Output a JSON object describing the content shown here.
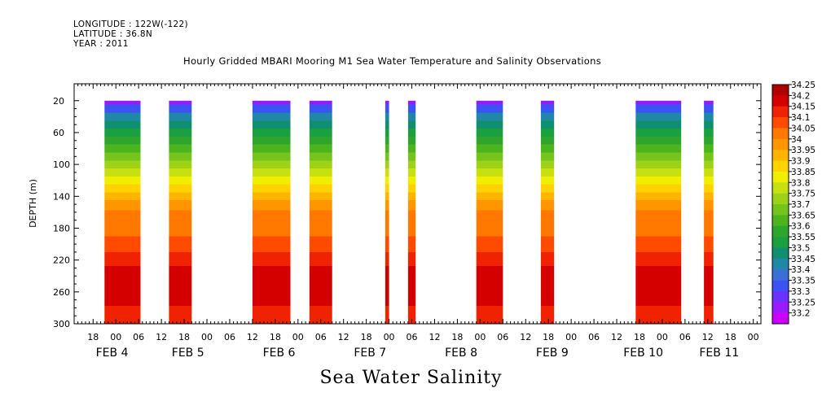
{
  "meta": {
    "longitude": "LONGITUDE : 122W(-122)",
    "latitude": "LATITUDE : 36.8N",
    "year": "YEAR : 2011"
  },
  "chart_data": {
    "type": "heatmap",
    "title": "Hourly Gridded MBARI Mooring M1 Sea Water Temperature and Salinity Observations",
    "footer": "Sea Water Salinity",
    "ylabel": "DEPTH (m)",
    "xlabel": "",
    "y_axis": {
      "range": [
        20,
        300
      ],
      "reversed": true,
      "ticks": [
        20,
        60,
        100,
        140,
        180,
        220,
        260,
        300
      ]
    },
    "x_axis": {
      "unit": "hours since FEB 3 00:00",
      "range": [
        13,
        194
      ],
      "tick_labels": [
        {
          "h": 18,
          "label": "18"
        },
        {
          "h": 24,
          "label": "00"
        },
        {
          "h": 30,
          "label": "06"
        },
        {
          "h": 36,
          "label": "12"
        },
        {
          "h": 42,
          "label": "18"
        },
        {
          "h": 48,
          "label": "00"
        },
        {
          "h": 54,
          "label": "06"
        },
        {
          "h": 60,
          "label": "12"
        },
        {
          "h": 66,
          "label": "18"
        },
        {
          "h": 72,
          "label": "00"
        },
        {
          "h": 78,
          "label": "06"
        },
        {
          "h": 84,
          "label": "12"
        },
        {
          "h": 90,
          "label": "18"
        },
        {
          "h": 96,
          "label": "00"
        },
        {
          "h": 102,
          "label": "06"
        },
        {
          "h": 108,
          "label": "12"
        },
        {
          "h": 114,
          "label": "18"
        },
        {
          "h": 120,
          "label": "00"
        },
        {
          "h": 126,
          "label": "06"
        },
        {
          "h": 132,
          "label": "12"
        },
        {
          "h": 138,
          "label": "18"
        },
        {
          "h": 144,
          "label": "00"
        },
        {
          "h": 150,
          "label": "06"
        },
        {
          "h": 156,
          "label": "12"
        },
        {
          "h": 162,
          "label": "18"
        },
        {
          "h": 168,
          "label": "00"
        },
        {
          "h": 174,
          "label": "06"
        },
        {
          "h": 180,
          "label": "12"
        },
        {
          "h": 186,
          "label": "18"
        },
        {
          "h": 192,
          "label": "00"
        }
      ],
      "day_labels": [
        {
          "h": 23,
          "label": "FEB  4"
        },
        {
          "h": 43,
          "label": "FEB  5"
        },
        {
          "h": 67,
          "label": "FEB  6"
        },
        {
          "h": 91,
          "label": "FEB  7"
        },
        {
          "h": 115,
          "label": "FEB  8"
        },
        {
          "h": 139,
          "label": "FEB  9"
        },
        {
          "h": 163,
          "label": "FEB 10"
        },
        {
          "h": 183,
          "label": "FEB 11"
        }
      ]
    },
    "legend": {
      "placement": "right",
      "levels": [
        "33.2",
        "33.25",
        "33.3",
        "33.35",
        "33.4",
        "33.45",
        "33.5",
        "33.55",
        "33.6",
        "33.65",
        "33.7",
        "33.75",
        "33.8",
        "33.85",
        "33.9",
        "33.95",
        "34",
        "34.05",
        "34.1",
        "34.15",
        "34.2",
        "34.25"
      ],
      "colors": [
        "#cc00ff",
        "#9a1aff",
        "#6b32ff",
        "#3d52f5",
        "#3a6fd6",
        "#1f88a8",
        "#0f8f6e",
        "#1aa041",
        "#2ea62e",
        "#4cb51e",
        "#74c41b",
        "#9ed219",
        "#c8e00f",
        "#f0ef00",
        "#ffd200",
        "#ffb400",
        "#ff9600",
        "#ff7800",
        "#ff4a00",
        "#f02200",
        "#d40000",
        "#b00000"
      ]
    },
    "observation_segments": [
      {
        "start_h": 21,
        "end_h": 30.5
      },
      {
        "start_h": 38,
        "end_h": 44
      },
      {
        "start_h": 60,
        "end_h": 70
      },
      {
        "start_h": 75,
        "end_h": 81
      },
      {
        "start_h": 95,
        "end_h": 96
      },
      {
        "start_h": 101,
        "end_h": 103
      },
      {
        "start_h": 119,
        "end_h": 126
      },
      {
        "start_h": 136,
        "end_h": 139.5
      },
      {
        "start_h": 161,
        "end_h": 173
      },
      {
        "start_h": 179,
        "end_h": 181.5
      }
    ],
    "salinity_profile": [
      {
        "depth": 20,
        "value": 33.25
      },
      {
        "depth": 30,
        "value": 33.35
      },
      {
        "depth": 40,
        "value": 33.45
      },
      {
        "depth": 50,
        "value": 33.5
      },
      {
        "depth": 60,
        "value": 33.55
      },
      {
        "depth": 70,
        "value": 33.6
      },
      {
        "depth": 80,
        "value": 33.65
      },
      {
        "depth": 90,
        "value": 33.7
      },
      {
        "depth": 100,
        "value": 33.75
      },
      {
        "depth": 110,
        "value": 33.8
      },
      {
        "depth": 120,
        "value": 33.85
      },
      {
        "depth": 130,
        "value": 33.9
      },
      {
        "depth": 140,
        "value": 33.95
      },
      {
        "depth": 150,
        "value": 34
      },
      {
        "depth": 165,
        "value": 34.05
      },
      {
        "depth": 180,
        "value": 34.05
      },
      {
        "depth": 200,
        "value": 34.1
      },
      {
        "depth": 220,
        "value": 34.15
      },
      {
        "depth": 235,
        "value": 34.2
      },
      {
        "depth": 250,
        "value": 34.2
      },
      {
        "depth": 270,
        "value": 34.2
      },
      {
        "depth": 285,
        "value": 34.15
      },
      {
        "depth": 300,
        "value": 34.15
      }
    ]
  }
}
